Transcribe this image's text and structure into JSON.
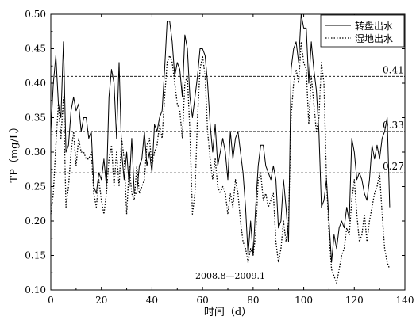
{
  "chart_data": {
    "type": "line",
    "xlabel": "时间（d）",
    "ylabel": "TP（mg/L）",
    "xlim": [
      0,
      140
    ],
    "ylim": [
      0.1,
      0.5
    ],
    "x_ticks": [
      "0",
      "20",
      "40",
      "60",
      "80",
      "100",
      "120",
      "140"
    ],
    "y_ticks": [
      "0.10",
      "0.15",
      "0.20",
      "0.25",
      "0.30",
      "0.35",
      "0.40",
      "0.45",
      "0.50"
    ],
    "x_tick_values": [
      0,
      20,
      40,
      60,
      80,
      100,
      120,
      140
    ],
    "y_tick_values": [
      0.1,
      0.15,
      0.2,
      0.25,
      0.3,
      0.35,
      0.4,
      0.45,
      0.5
    ],
    "grid": false,
    "legend_position": "top-right",
    "annotation": "2008.8—2009.1",
    "reference_lines": [
      {
        "value": 0.41,
        "label": "0.41"
      },
      {
        "value": 0.33,
        "label": "0.33"
      },
      {
        "value": 0.27,
        "label": "0.27"
      }
    ],
    "series": [
      {
        "name": "转盘出水",
        "style": "solid",
        "color": "#000000",
        "x": [
          0,
          1,
          2,
          3,
          4,
          5,
          6,
          7,
          8,
          9,
          10,
          11,
          12,
          13,
          14,
          15,
          16,
          17,
          18,
          19,
          20,
          21,
          22,
          23,
          24,
          25,
          26,
          27,
          28,
          29,
          30,
          31,
          32,
          33,
          34,
          35,
          36,
          37,
          38,
          39,
          40,
          41,
          42,
          43,
          44,
          45,
          46,
          47,
          48,
          49,
          50,
          51,
          52,
          53,
          54,
          55,
          56,
          57,
          58,
          59,
          60,
          61,
          62,
          63,
          64,
          65,
          66,
          67,
          68,
          69,
          70,
          71,
          72,
          73,
          74,
          75,
          76,
          77,
          78,
          79,
          80,
          81,
          82,
          83,
          84,
          85,
          86,
          87,
          88,
          89,
          90,
          91,
          92,
          93,
          94,
          95,
          96,
          97,
          98,
          99,
          100,
          101,
          102,
          103,
          104,
          105,
          106,
          107,
          108,
          109,
          110,
          111,
          112,
          113,
          114,
          115,
          116,
          117,
          118,
          119,
          120,
          121,
          122,
          123,
          124,
          125,
          126,
          127,
          128,
          129,
          130,
          131,
          132,
          133,
          134
        ],
        "y": [
          0.33,
          0.4,
          0.44,
          0.37,
          0.35,
          0.46,
          0.3,
          0.31,
          0.36,
          0.38,
          0.36,
          0.37,
          0.33,
          0.35,
          0.35,
          0.32,
          0.33,
          0.25,
          0.24,
          0.27,
          0.26,
          0.29,
          0.25,
          0.38,
          0.42,
          0.4,
          0.32,
          0.43,
          0.3,
          0.26,
          0.3,
          0.25,
          0.32,
          0.24,
          0.24,
          0.28,
          0.29,
          0.33,
          0.28,
          0.3,
          0.27,
          0.34,
          0.33,
          0.35,
          0.36,
          0.42,
          0.49,
          0.49,
          0.46,
          0.41,
          0.43,
          0.42,
          0.38,
          0.47,
          0.45,
          0.38,
          0.35,
          0.38,
          0.41,
          0.45,
          0.45,
          0.44,
          0.4,
          0.34,
          0.3,
          0.34,
          0.28,
          0.3,
          0.32,
          0.3,
          0.26,
          0.33,
          0.29,
          0.32,
          0.33,
          0.3,
          0.27,
          0.22,
          0.15,
          0.2,
          0.15,
          0.22,
          0.28,
          0.31,
          0.31,
          0.28,
          0.27,
          0.26,
          0.28,
          0.26,
          0.19,
          0.2,
          0.26,
          0.22,
          0.17,
          0.42,
          0.45,
          0.46,
          0.43,
          0.5,
          0.48,
          0.48,
          0.4,
          0.46,
          0.42,
          0.39,
          0.33,
          0.22,
          0.23,
          0.26,
          0.2,
          0.14,
          0.18,
          0.16,
          0.19,
          0.2,
          0.19,
          0.22,
          0.2,
          0.32,
          0.3,
          0.26,
          0.27,
          0.26,
          0.24,
          0.23,
          0.26,
          0.31,
          0.29,
          0.31,
          0.29,
          0.32,
          0.33,
          0.35,
          0.22
        ]
      },
      {
        "name": "湿地出水",
        "style": "dotted",
        "color": "#000000",
        "x": [
          0,
          1,
          2,
          3,
          4,
          5,
          6,
          7,
          8,
          9,
          10,
          11,
          12,
          13,
          14,
          15,
          16,
          17,
          18,
          19,
          20,
          21,
          22,
          23,
          24,
          25,
          26,
          27,
          28,
          29,
          30,
          31,
          32,
          33,
          34,
          35,
          36,
          37,
          38,
          39,
          40,
          41,
          42,
          43,
          44,
          45,
          46,
          47,
          48,
          49,
          50,
          51,
          52,
          53,
          54,
          55,
          56,
          57,
          58,
          59,
          60,
          61,
          62,
          63,
          64,
          65,
          66,
          67,
          68,
          69,
          70,
          71,
          72,
          73,
          74,
          75,
          76,
          77,
          78,
          79,
          80,
          81,
          82,
          83,
          84,
          85,
          86,
          87,
          88,
          89,
          90,
          91,
          92,
          93,
          94,
          95,
          96,
          97,
          98,
          99,
          100,
          101,
          102,
          103,
          104,
          105,
          106,
          107,
          108,
          109,
          110,
          111,
          112,
          113,
          114,
          115,
          116,
          117,
          118,
          119,
          120,
          121,
          122,
          123,
          124,
          125,
          126,
          127,
          128,
          129,
          130,
          131,
          132,
          133,
          134
        ],
        "y": [
          0.21,
          0.24,
          0.31,
          0.37,
          0.32,
          0.38,
          0.22,
          0.25,
          0.3,
          0.33,
          0.28,
          0.32,
          0.3,
          0.3,
          0.29,
          0.29,
          0.3,
          0.24,
          0.22,
          0.26,
          0.23,
          0.21,
          0.24,
          0.29,
          0.31,
          0.25,
          0.3,
          0.25,
          0.32,
          0.29,
          0.21,
          0.28,
          0.24,
          0.23,
          0.28,
          0.24,
          0.25,
          0.26,
          0.31,
          0.32,
          0.28,
          0.3,
          0.31,
          0.34,
          0.32,
          0.38,
          0.43,
          0.44,
          0.43,
          0.4,
          0.37,
          0.36,
          0.32,
          0.4,
          0.41,
          0.33,
          0.21,
          0.24,
          0.35,
          0.42,
          0.44,
          0.41,
          0.33,
          0.29,
          0.26,
          0.29,
          0.25,
          0.24,
          0.25,
          0.24,
          0.21,
          0.24,
          0.22,
          0.26,
          0.24,
          0.2,
          0.17,
          0.16,
          0.14,
          0.16,
          0.15,
          0.18,
          0.26,
          0.27,
          0.23,
          0.24,
          0.22,
          0.23,
          0.24,
          0.17,
          0.14,
          0.16,
          0.2,
          0.17,
          0.2,
          0.35,
          0.4,
          0.42,
          0.4,
          0.46,
          0.43,
          0.42,
          0.34,
          0.41,
          0.37,
          0.33,
          0.35,
          0.43,
          0.4,
          0.26,
          0.18,
          0.13,
          0.12,
          0.11,
          0.13,
          0.15,
          0.16,
          0.19,
          0.18,
          0.23,
          0.26,
          0.21,
          0.17,
          0.18,
          0.21,
          0.17,
          0.2,
          0.22,
          0.24,
          0.25,
          0.27,
          0.21,
          0.16,
          0.14,
          0.13
        ]
      }
    ]
  }
}
